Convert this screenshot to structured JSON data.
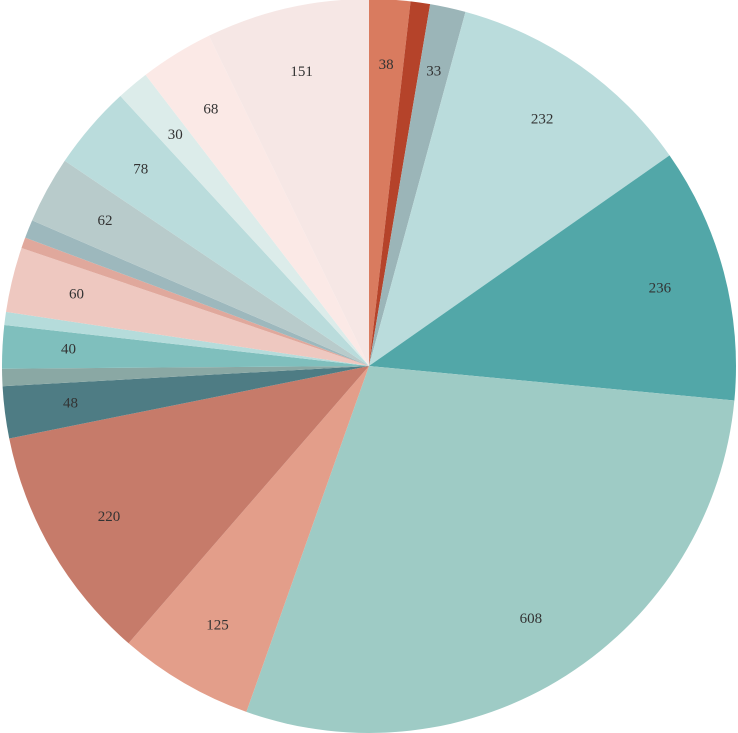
{
  "chart_data": {
    "type": "pie",
    "categories": [
      null,
      null,
      null,
      null,
      null,
      null,
      null,
      null,
      null,
      null,
      null,
      null,
      null,
      null,
      null,
      null,
      null,
      null,
      null,
      null
    ],
    "values": [
      38,
      18,
      33,
      232,
      236,
      608,
      125,
      220,
      48,
      16,
      40,
      12,
      60,
      10,
      17,
      62,
      78,
      30,
      68,
      151
    ],
    "value_labels": [
      "38",
      null,
      "33",
      "232",
      "236",
      "608",
      "125",
      "220",
      "48",
      null,
      "40",
      null,
      "60",
      null,
      null,
      "62",
      "78",
      "30",
      "68",
      "151"
    ],
    "colors": [
      "#d97b5f",
      "#b5432a",
      "#9bb5b8",
      "#badcdc",
      "#52a7a8",
      "#9ecbc5",
      "#e39e8a",
      "#c67b6a",
      "#4e7c84",
      "#8aa8a4",
      "#7fbfbd",
      "#b5dcdb",
      "#eec8c0",
      "#e0a89c",
      "#9db8bd",
      "#b8cbcb",
      "#badcdc",
      "#dcecea",
      "#fbe9e6",
      "#f6e7e5"
    ]
  }
}
